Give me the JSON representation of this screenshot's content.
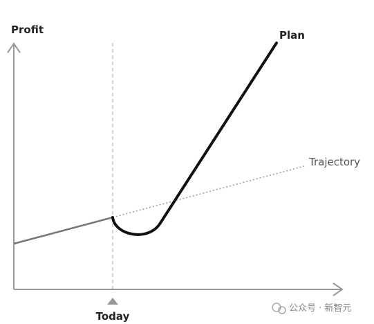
{
  "axes": {
    "y_label": "Profit",
    "x_marker": "Today"
  },
  "lines": {
    "plan": "Plan",
    "trajectory": "Trajectory"
  },
  "watermark": "公众号 · 新智元"
}
